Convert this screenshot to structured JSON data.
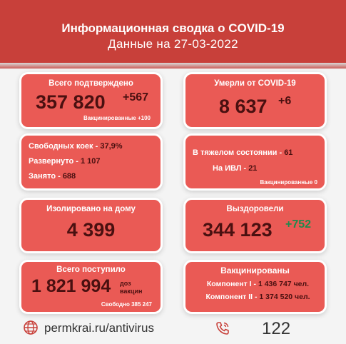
{
  "header": {
    "title": "Информационная сводка о COVID-19",
    "subtitle": "Данные на 27-03-2022"
  },
  "confirmed": {
    "label": "Всего подтверждено",
    "value": "357 820",
    "delta": "+567",
    "note": "Вакцинированные +100"
  },
  "deaths": {
    "label": "Умерли от COVID-19",
    "value": "8 637",
    "delta": "+6"
  },
  "beds": {
    "free_label": "Свободных коек - ",
    "free_value": "37,9%",
    "deployed_label": "Развернуто - ",
    "deployed_value": "1 107",
    "occupied_label": "Занято - ",
    "occupied_value": "688"
  },
  "severe": {
    "severe_label": "В тяжелом состоянии - ",
    "severe_value": "61",
    "ventilator_label": "На ИВЛ - ",
    "ventilator_value": "21",
    "note": "Вакцинированные 0"
  },
  "isolated": {
    "label": "Изолировано на дому",
    "value": "4 399"
  },
  "recovered": {
    "label": "Выздоровели",
    "value": "344 123",
    "delta": "+752"
  },
  "arrived": {
    "label": "Всего поступило",
    "value": "1 821 994",
    "unit_line1": "доз",
    "unit_line2": "вакцин",
    "note": "Свободно 385 247"
  },
  "vaccinated": {
    "label": "Вакцинированы",
    "comp1_label": "Компонент I - ",
    "comp1_value": "1 436 747 чел.",
    "comp2_label": "Компонент II - ",
    "comp2_value": "1 374 520 чел."
  },
  "footer": {
    "site": "permkrai.ru/antivirus",
    "hotline": "122"
  },
  "colors": {
    "header": "#c8403a",
    "card": "#ea5a55",
    "dark_text": "#4a1010",
    "green": "#1f8a4c"
  }
}
